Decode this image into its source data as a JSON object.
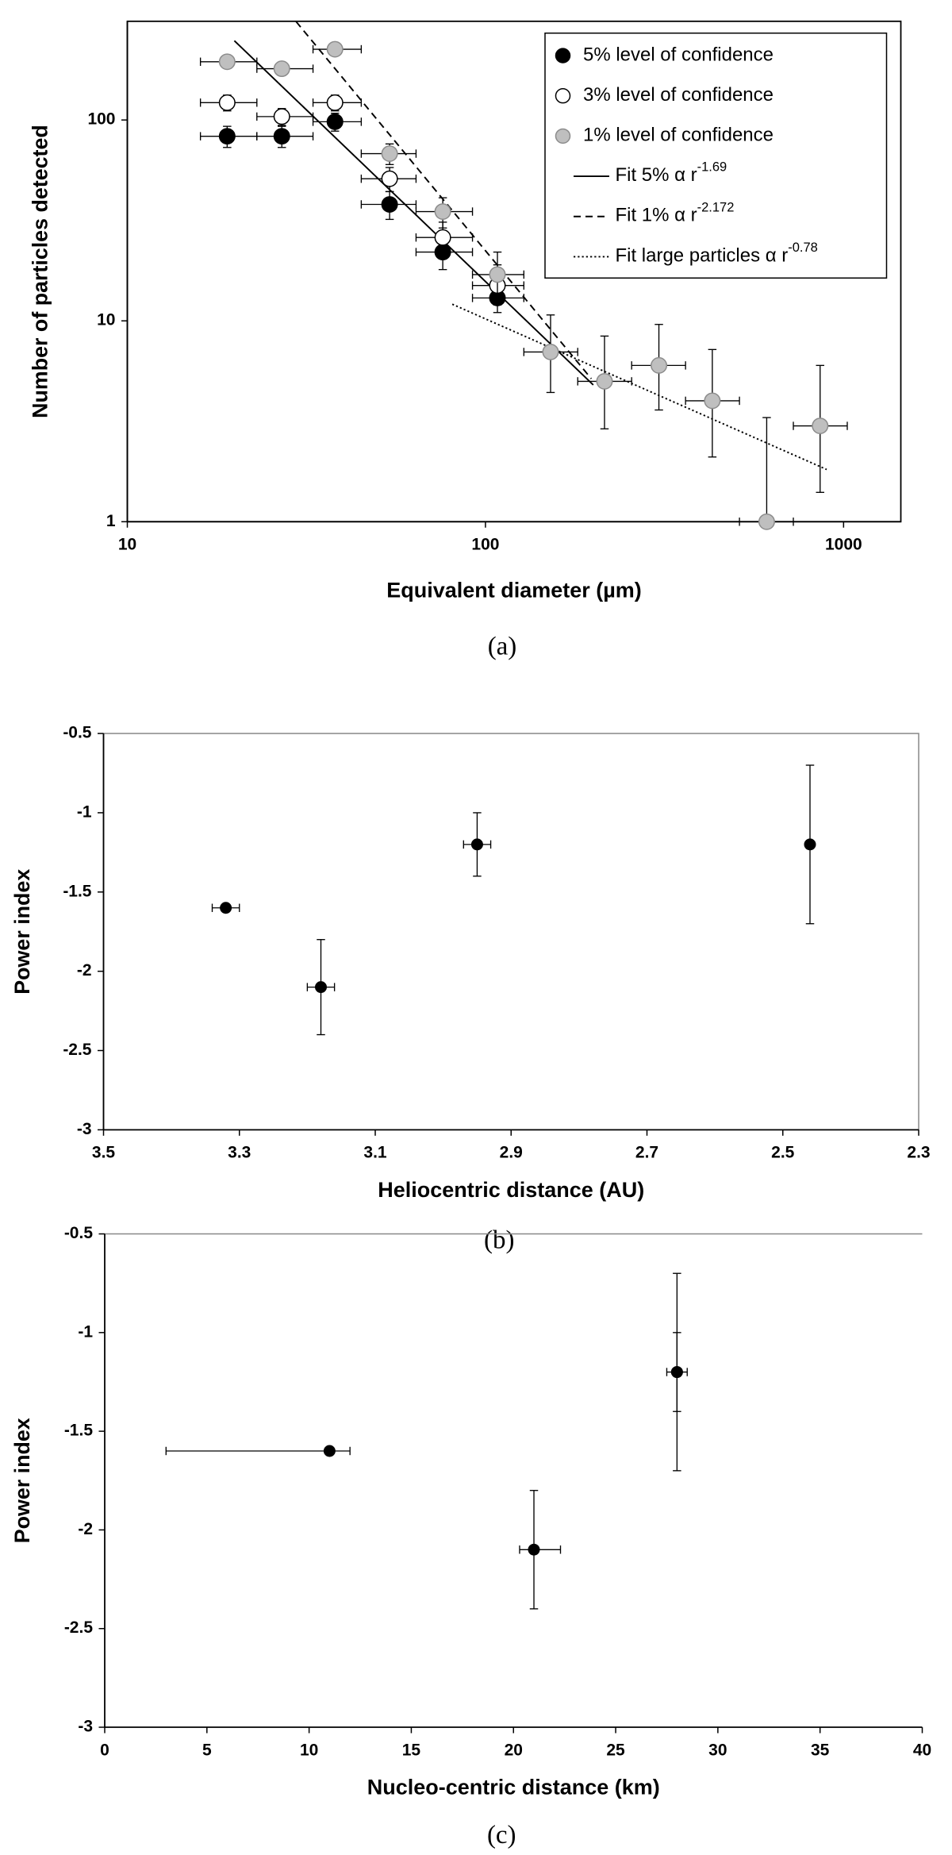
{
  "chart_data": [
    {
      "type": "scatter",
      "xlabel": "Equivalent diameter (µm)",
      "ylabel": "Number of particles detected",
      "caption": "(a)",
      "xlog": true,
      "ylog": true,
      "xlim": [
        10,
        1445
      ],
      "ylim": [
        1,
        310
      ],
      "xticks": [
        10,
        100,
        1000
      ],
      "yticks": [
        1,
        10,
        100
      ],
      "series": [
        {
          "name": "5% level of confidence",
          "color": "#000000",
          "edge": "#000000",
          "x": [
            19,
            27,
            38,
            54,
            76,
            108
          ],
          "values": [
            83,
            83,
            98,
            38,
            22,
            13
          ],
          "xerr": [
            [
              16,
              23
            ],
            [
              23,
              33
            ],
            [
              33,
              45
            ],
            [
              45,
              64
            ],
            [
              64,
              92
            ],
            [
              92,
              128
            ]
          ],
          "yerr": [
            [
              73,
              93
            ],
            [
              73,
              93
            ],
            [
              88,
              108
            ],
            [
              32,
              44
            ],
            [
              18,
              27
            ],
            [
              11,
              16
            ]
          ]
        },
        {
          "name": "3% level of confidence",
          "color": "#ffffff",
          "edge": "#000000",
          "x": [
            19,
            27,
            38,
            54,
            76,
            108
          ],
          "values": [
            122,
            104,
            122,
            51,
            26,
            15
          ],
          "xerr": [
            [
              16,
              23
            ],
            [
              23,
              33
            ],
            [
              33,
              45
            ],
            [
              45,
              64
            ],
            [
              64,
              92
            ],
            [
              92,
              128
            ]
          ],
          "yerr": [
            [
              111,
              133
            ],
            [
              94,
              114
            ],
            [
              111,
              133
            ],
            [
              44,
              58
            ],
            [
              21,
              31
            ],
            [
              12,
              19
            ]
          ]
        },
        {
          "name": "1% level of confidence",
          "color": "#bfbfbf",
          "edge": "#8c8c8c",
          "x": [
            19,
            27,
            38,
            54,
            76,
            108,
            152,
            215,
            305,
            430,
            610,
            860
          ],
          "values": [
            195,
            180,
            225,
            68,
            35,
            17,
            7,
            5,
            6,
            4,
            1,
            3
          ],
          "xerr": [
            [
              16,
              23
            ],
            [
              23,
              33
            ],
            [
              33,
              45
            ],
            [
              45,
              64
            ],
            [
              64,
              92
            ],
            [
              92,
              128
            ],
            [
              128,
              181
            ],
            [
              181,
              256
            ],
            [
              256,
              362
            ],
            [
              362,
              512
            ],
            [
              512,
              724
            ],
            [
              724,
              1024
            ]
          ],
          "yerr": [
            [
              181,
              209
            ],
            [
              167,
              193
            ],
            [
              210,
              240
            ],
            [
              60,
              76
            ],
            [
              29,
              41
            ],
            [
              13,
              22
            ],
            [
              4.4,
              10.7
            ],
            [
              2.9,
              8.4
            ],
            [
              3.6,
              9.6
            ],
            [
              2.1,
              7.2
            ],
            [
              1,
              3.3
            ],
            [
              1.4,
              6
            ]
          ]
        }
      ],
      "fits": [
        {
          "name": "Fit 5%  α r",
          "sup": "-1.69",
          "style": "solid",
          "x": [
            19.9,
            200
          ],
          "values": [
            248,
            4.8
          ]
        },
        {
          "name": "Fit 1%  α r",
          "sup": "-2.172",
          "style": "dashed",
          "x": [
            29.6,
            197.5
          ],
          "values": [
            309,
            5.15
          ]
        },
        {
          "name": "Fit large particles α r",
          "sup": "-0.78",
          "style": "dotted",
          "x": [
            80.8,
            897
          ],
          "values": [
            12.1,
            1.82
          ]
        }
      ]
    },
    {
      "type": "scatter",
      "xlabel": "Heliocentric distance (AU)",
      "ylabel": "Power index",
      "caption": "(b)",
      "xlim": [
        3.5,
        2.3
      ],
      "ylim": [
        -3,
        -0.5
      ],
      "xticks": [
        3.5,
        3.3,
        3.1,
        2.9,
        2.7,
        2.5,
        2.3
      ],
      "yticks": [
        -3,
        -2.5,
        -2,
        -1.5,
        -1,
        -0.5
      ],
      "series": [
        {
          "color": "#000000",
          "edge": "#000000",
          "x": [
            3.32,
            3.18,
            2.95,
            2.46
          ],
          "values": [
            -1.6,
            -2.1,
            -1.2,
            -1.2
          ],
          "xerr": [
            [
              3.34,
              3.3
            ],
            [
              3.2,
              3.16
            ],
            [
              2.97,
              2.93
            ],
            null
          ],
          "yerr": [
            null,
            [
              -2.4,
              -1.8
            ],
            [
              -1.4,
              -1
            ],
            [
              -1.7,
              -0.7
            ]
          ]
        }
      ]
    },
    {
      "type": "scatter",
      "xlabel": "Nucleo-centric distance (km)",
      "ylabel": "Power index",
      "caption": "(c)",
      "xlim": [
        0,
        40
      ],
      "ylim": [
        -3,
        -0.5
      ],
      "xticks": [
        0,
        5,
        10,
        15,
        20,
        25,
        30,
        35,
        40
      ],
      "yticks": [
        -3,
        -2.5,
        -2,
        -1.5,
        -1,
        -0.5
      ],
      "series": [
        {
          "color": "#000000",
          "edge": "#000000",
          "x": [
            11,
            21,
            28,
            28
          ],
          "values": [
            -1.6,
            -2.1,
            -1.2,
            -1.2
          ],
          "xerr": [
            [
              3,
              12
            ],
            [
              20.3,
              22.3
            ],
            [
              27.5,
              28.5
            ],
            null
          ],
          "yerr": [
            null,
            [
              -2.4,
              -1.8
            ],
            [
              -1.7,
              -0.7
            ],
            [
              -1.4,
              -1
            ]
          ]
        }
      ]
    }
  ]
}
